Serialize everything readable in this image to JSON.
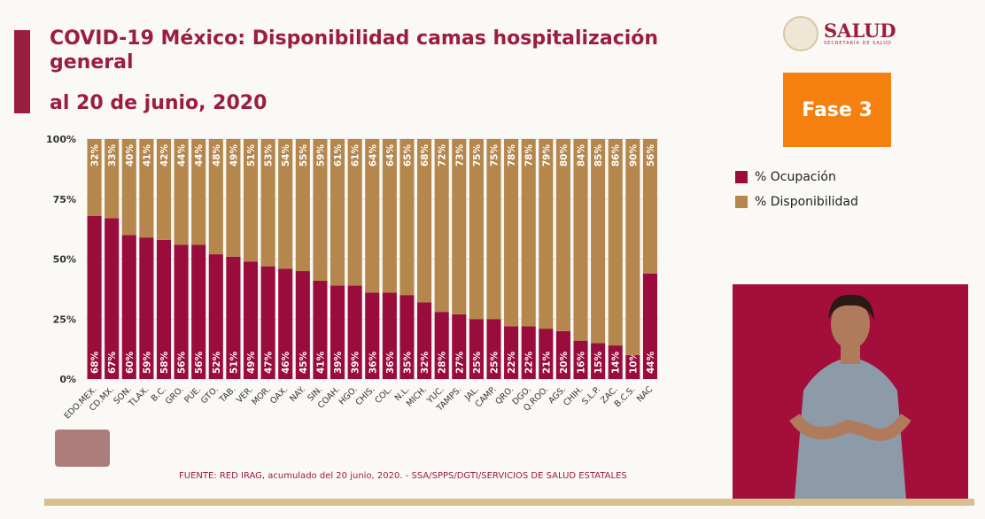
{
  "header": {
    "title": "COVID-19 México: Disponibilidad camas hospitalización general",
    "subtitle": "al 20 de junio, 2020"
  },
  "logo": {
    "main": "SALUD",
    "sub": "SECRETARÍA DE SALUD"
  },
  "badge": {
    "label": "Fase 3",
    "color": "#f57f0f"
  },
  "footer": {
    "source": "FUENTE: RED IRAG, acumulado del 20 junio, 2020. -  SSA/SPPS/DGTI/SERVICIOS DE SALUD ESTATALES"
  },
  "chart_data": {
    "type": "bar",
    "stacked": true,
    "categories": [
      "EDO.MEX.",
      "CD.MX.",
      "SON.",
      "TLAX.",
      "B.C.",
      "GRO.",
      "PUE.",
      "GTO.",
      "TAB.",
      "VER.",
      "MOR.",
      "OAX.",
      "NAY.",
      "SIN.",
      "COAH.",
      "HGO.",
      "CHIS.",
      "COL.",
      "N.L.",
      "MICH.",
      "YUC.",
      "TAMPS.",
      "JAL.",
      "CAMP.",
      "QRO.",
      "DGO.",
      "Q.ROO.",
      "AGS.",
      "CHIH.",
      "S.L.P.",
      "ZAC.",
      "B.C.S.",
      "NAC"
    ],
    "series": [
      {
        "name": "% Ocupación",
        "color": "#9a0c3c",
        "values": [
          68,
          67,
          60,
          59,
          58,
          56,
          56,
          52,
          51,
          49,
          47,
          46,
          45,
          41,
          39,
          39,
          36,
          36,
          35,
          32,
          28,
          27,
          25,
          25,
          22,
          22,
          21,
          20,
          16,
          15,
          14,
          10,
          44
        ]
      },
      {
        "name": "% Disponibilidad",
        "color": "#b5874d",
        "values": [
          32,
          33,
          40,
          41,
          42,
          44,
          44,
          48,
          49,
          51,
          53,
          54,
          55,
          59,
          61,
          61,
          64,
          64,
          65,
          68,
          72,
          73,
          75,
          75,
          78,
          78,
          79,
          80,
          84,
          85,
          86,
          90,
          56
        ]
      }
    ],
    "yticks": [
      "0%",
      "25%",
      "50%",
      "75%",
      "100%"
    ],
    "ylim": [
      0,
      100
    ],
    "grid": true,
    "legend": "right"
  }
}
